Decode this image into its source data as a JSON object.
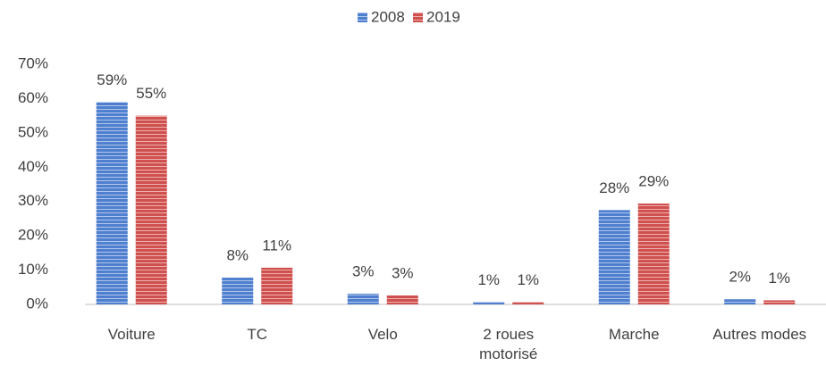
{
  "chart_data": {
    "type": "bar",
    "categories": [
      "Voiture",
      "TC",
      "Velo",
      "2 roues motorisé",
      "Marche",
      "Autres modes"
    ],
    "series": [
      {
        "name": "2008",
        "color": "#4f7fcf",
        "values": [
          59,
          7.8,
          3.1,
          0.7,
          27.5,
          1.5
        ],
        "value_labels": [
          "59%",
          "8%",
          "3%",
          "1%",
          "28%",
          "2%"
        ]
      },
      {
        "name": "2019",
        "color": "#d0504d",
        "values": [
          55,
          10.7,
          2.6,
          0.7,
          29.4,
          1.2
        ],
        "value_labels": [
          "55%",
          "11%",
          "3%",
          "1%",
          "29%",
          "1%"
        ]
      }
    ],
    "ylim": [
      0,
      70
    ],
    "yticks": [
      {
        "value": 0,
        "label": "0%"
      },
      {
        "value": 10,
        "label": "10%"
      },
      {
        "value": 20,
        "label": "20%"
      },
      {
        "value": 30,
        "label": "30%"
      },
      {
        "value": 40,
        "label": "40%"
      },
      {
        "value": 50,
        "label": "50%"
      },
      {
        "value": 60,
        "label": "60%"
      },
      {
        "value": 70,
        "label": "70%"
      }
    ],
    "grid": false,
    "legend": "top"
  }
}
